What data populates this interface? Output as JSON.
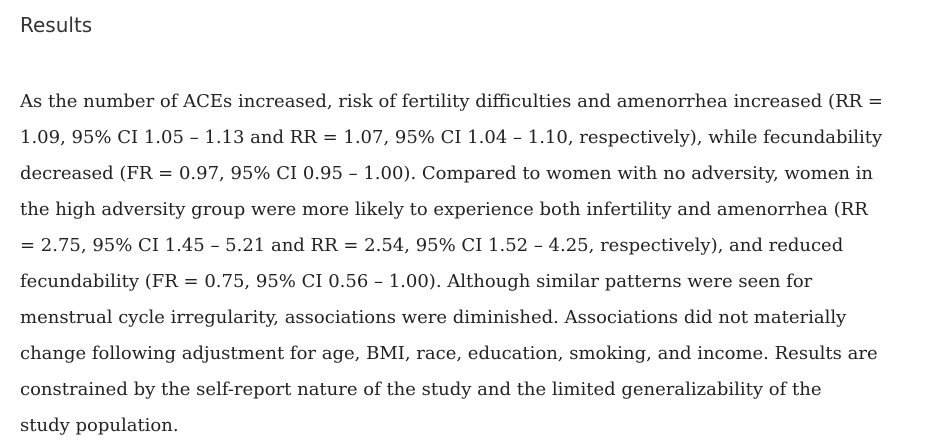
{
  "section": {
    "heading": "Results",
    "lines": [
      "As the number of ACEs increased, risk of fertility difficulties and amenorrhea increased (RR =",
      "1.09, 95% CI 1.05 – 1.13 and RR = 1.07, 95% CI 1.04 – 1.10, respectively), while fecundability",
      "decreased (FR = 0.97, 95% CI 0.95 – 1.00). Compared to women with no adversity, women in",
      "the high adversity group were more likely to experience both infertility and amenorrhea (RR",
      "= 2.75, 95% CI 1.45 – 5.21 and RR = 2.54, 95% CI 1.52 – 4.25, respectively), and reduced",
      "fecundability (FR = 0.75, 95% CI 0.56 – 1.00). Although similar patterns were seen for",
      "menstrual cycle irregularity, associations were diminished. Associations did not materially",
      "change following adjustment for age, BMI, race, education, smoking, and income. Results are",
      "constrained by the self-report nature of the study and the limited generalizability of the",
      "study population."
    ]
  }
}
